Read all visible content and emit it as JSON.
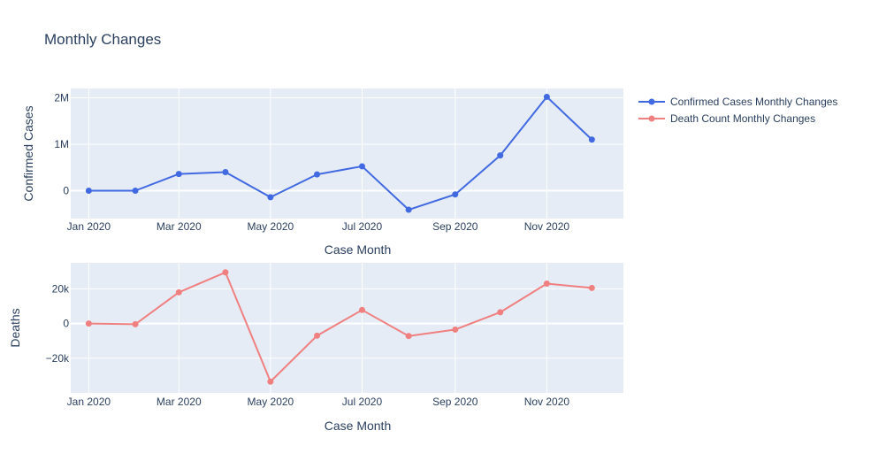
{
  "title": "Monthly Changes",
  "colors": {
    "confirmed": "#4169e1",
    "deaths": "#f08080",
    "plot_bg": "#e5ecf6",
    "text": "#2a3f5f"
  },
  "legend": {
    "position": "top-right",
    "items": [
      {
        "label": "Confirmed Cases Monthly Changes",
        "color": "#4169e1"
      },
      {
        "label": "Death Count Monthly Changes",
        "color": "#f08080"
      }
    ]
  },
  "chart_data": [
    {
      "type": "line",
      "name": "top-chart",
      "series": [
        {
          "name": "Confirmed Cases Monthly Changes",
          "x": [
            "2020-01-01",
            "2020-02-01",
            "2020-03-01",
            "2020-04-01",
            "2020-05-01",
            "2020-06-01",
            "2020-07-01",
            "2020-08-01",
            "2020-09-01",
            "2020-10-01",
            "2020-11-01",
            "2020-12-01"
          ],
          "values": [
            0,
            0,
            360000,
            400000,
            -140000,
            350000,
            525000,
            -410000,
            -80000,
            760000,
            2020000,
            1100000
          ]
        }
      ],
      "xlabel": "Case Month",
      "ylabel": "Confirmed Cases",
      "xlim": [
        "2019-12-20",
        "2020-12-22"
      ],
      "ylim": [
        -600000,
        2200000
      ],
      "yticks": [
        0,
        1000000,
        2000000
      ],
      "ytick_labels": [
        "0",
        "1M",
        "2M"
      ],
      "xticks": [
        "2020-01-01",
        "2020-03-01",
        "2020-05-01",
        "2020-07-01",
        "2020-09-01",
        "2020-11-01"
      ],
      "xtick_labels": [
        "Jan 2020",
        "Mar 2020",
        "May 2020",
        "Jul 2020",
        "Sep 2020",
        "Nov 2020"
      ],
      "grid": true
    },
    {
      "type": "line",
      "name": "bottom-chart",
      "series": [
        {
          "name": "Death Count Monthly Changes",
          "x": [
            "2020-01-01",
            "2020-02-01",
            "2020-03-01",
            "2020-04-01",
            "2020-05-01",
            "2020-06-01",
            "2020-07-01",
            "2020-08-01",
            "2020-09-01",
            "2020-10-01",
            "2020-11-01",
            "2020-12-01"
          ],
          "values": [
            0,
            -400,
            18000,
            29500,
            -33500,
            -7000,
            7800,
            -7200,
            -3500,
            6500,
            23000,
            20500
          ]
        }
      ],
      "xlabel": "Case Month",
      "ylabel": "Deaths",
      "xlim": [
        "2019-12-20",
        "2020-12-22"
      ],
      "ylim": [
        -40000,
        35000
      ],
      "yticks": [
        -20000,
        0,
        20000
      ],
      "ytick_labels": [
        "−20k",
        "0",
        "20k"
      ],
      "xticks": [
        "2020-01-01",
        "2020-03-01",
        "2020-05-01",
        "2020-07-01",
        "2020-09-01",
        "2020-11-01"
      ],
      "xtick_labels": [
        "Jan 2020",
        "Mar 2020",
        "May 2020",
        "Jul 2020",
        "Sep 2020",
        "Nov 2020"
      ],
      "grid": true
    }
  ]
}
